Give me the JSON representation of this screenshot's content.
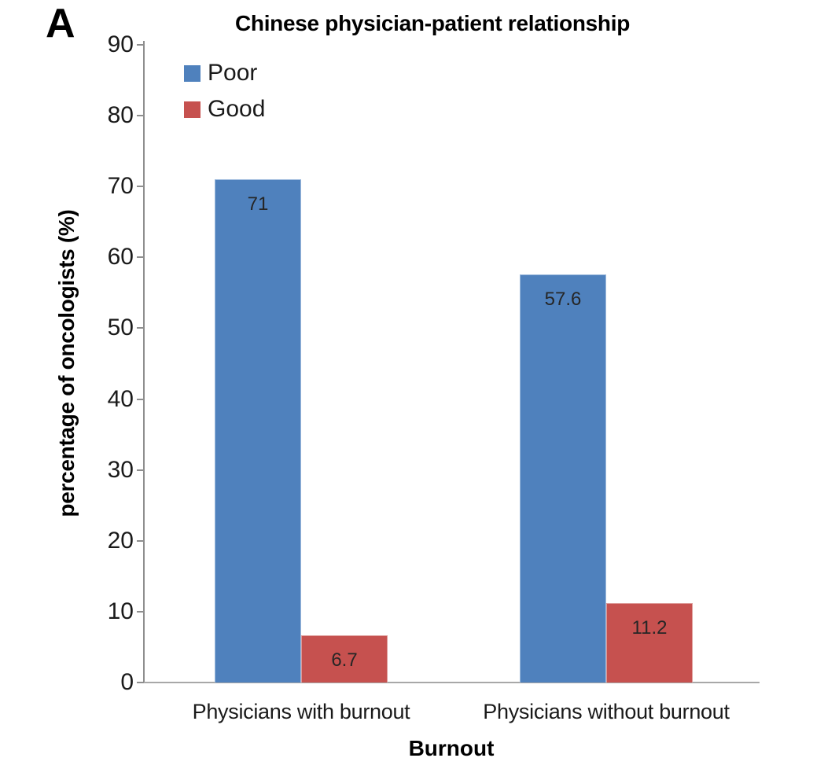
{
  "panel_label": "A",
  "chart_data": {
    "type": "bar",
    "title": "Chinese physician-patient relationship",
    "xlabel": "Burnout",
    "ylabel": "percentage of oncologists (%)",
    "categories": [
      "Physicians with burnout",
      "Physicians without burnout"
    ],
    "series": [
      {
        "name": "Poor",
        "color": "#4f81bd",
        "border_color": "#9cb9dc",
        "values": [
          71,
          57.6
        ],
        "data_labels": [
          "71",
          "57.6"
        ]
      },
      {
        "name": "Good",
        "color": "#c6514f",
        "border_color": "#dd9a98",
        "values": [
          6.7,
          11.2
        ],
        "data_labels": [
          "6.7",
          "11.2"
        ]
      }
    ],
    "ylim": [
      0,
      90
    ],
    "yticks": [
      0,
      10,
      20,
      30,
      40,
      50,
      60,
      70,
      80,
      90
    ],
    "grid": false,
    "legend_position": "top-left-inside"
  },
  "colors": {
    "axis_y": "#8e8e8e",
    "axis_x": "#a8a8a8",
    "text": "#1a1a1a",
    "background": "#ffffff"
  }
}
